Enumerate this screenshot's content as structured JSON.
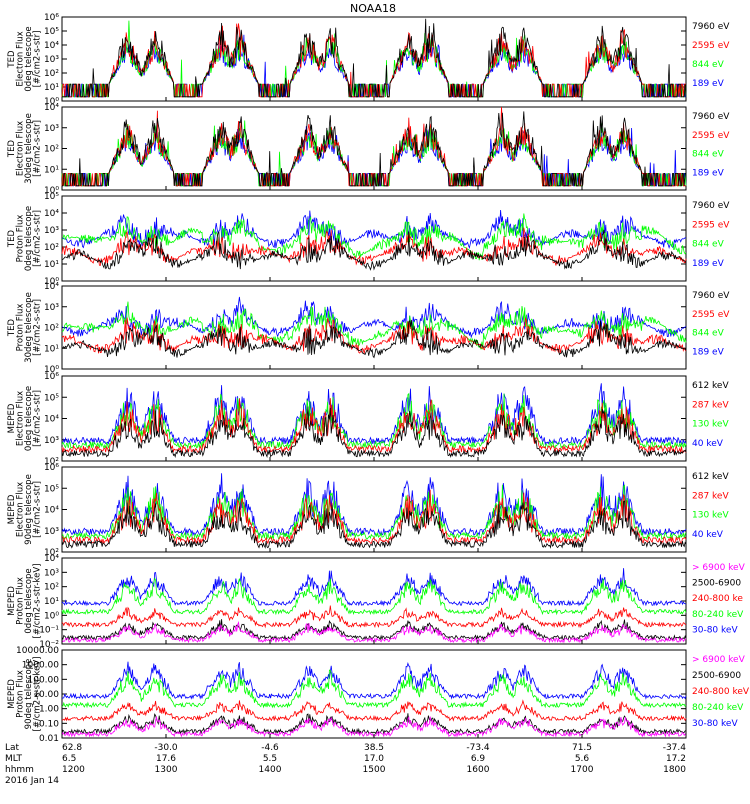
{
  "title": "NOAA18",
  "chart_data": [
    {
      "type": "line",
      "ylabel_lines": [
        "TED",
        "Electron Flux",
        "0deg telescope",
        "[#/cm2-s-str]"
      ],
      "yscale": "log",
      "ytick_labels": [
        "10⁰",
        "10¹",
        "10²",
        "10³",
        "10⁴",
        "10⁵",
        "10⁶"
      ],
      "ylim": [
        1,
        1000000
      ],
      "series": [
        {
          "name": "7960 eV",
          "color": "#000000"
        },
        {
          "name": "2595 eV",
          "color": "#ff0000"
        },
        {
          "name": "844 eV",
          "color": "#00ff00"
        },
        {
          "name": "189 eV",
          "color": "#0000ff"
        }
      ]
    },
    {
      "type": "line",
      "ylabel_lines": [
        "TED",
        "Electron Flux",
        "30deg telescope",
        "[#/cm2-s-str]"
      ],
      "yscale": "log",
      "ytick_labels": [
        "10⁰",
        "10¹",
        "10²",
        "10³",
        "10⁴"
      ],
      "ylim": [
        1,
        30000
      ],
      "series": [
        {
          "name": "7960 eV",
          "color": "#000000"
        },
        {
          "name": "2595 eV",
          "color": "#ff0000"
        },
        {
          "name": "844 eV",
          "color": "#00ff00"
        },
        {
          "name": "189 eV",
          "color": "#0000ff"
        }
      ]
    },
    {
      "type": "line",
      "ylabel_lines": [
        "TED",
        "Proton Flux",
        "0deg telescope",
        "[#/cm2-s-str]"
      ],
      "yscale": "log",
      "ytick_labels": [
        "10⁰",
        "10¹",
        "10²",
        "10³",
        "10⁴",
        "10⁵"
      ],
      "ylim": [
        1,
        100000
      ],
      "series": [
        {
          "name": "7960 eV",
          "color": "#000000"
        },
        {
          "name": "2595 eV",
          "color": "#ff0000"
        },
        {
          "name": "844 eV",
          "color": "#00ff00"
        },
        {
          "name": "189 eV",
          "color": "#0000ff"
        }
      ]
    },
    {
      "type": "line",
      "ylabel_lines": [
        "TED",
        "Proton Flux",
        "30deg telescope",
        "[#/cm2-s-str]"
      ],
      "yscale": "log",
      "ytick_labels": [
        "10⁰",
        "10¹",
        "10²",
        "10³",
        "10⁴"
      ],
      "ylim": [
        1,
        30000
      ],
      "series": [
        {
          "name": "7960 eV",
          "color": "#000000"
        },
        {
          "name": "2595 eV",
          "color": "#ff0000"
        },
        {
          "name": "844 eV",
          "color": "#00ff00"
        },
        {
          "name": "189 eV",
          "color": "#0000ff"
        }
      ]
    },
    {
      "type": "line",
      "ylabel_lines": [
        "MEPED",
        "Electron Flux",
        "0deg telescope",
        "[#/cm2-s-str]"
      ],
      "yscale": "log",
      "ytick_labels": [
        "10²",
        "10³",
        "10⁴",
        "10⁵",
        "10⁶"
      ],
      "ylim": [
        100,
        1000000
      ],
      "series": [
        {
          "name": "612 keV",
          "color": "#000000"
        },
        {
          "name": "287 keV",
          "color": "#ff0000"
        },
        {
          "name": "130 keV",
          "color": "#00ff00"
        },
        {
          "name": "40 keV",
          "color": "#0000ff"
        }
      ]
    },
    {
      "type": "line",
      "ylabel_lines": [
        "MEPED",
        "Electron Flux",
        "90deg telescope",
        "[#/cm2-s-str]"
      ],
      "yscale": "log",
      "ytick_labels": [
        "10²",
        "10³",
        "10⁴",
        "10⁵",
        "10⁶"
      ],
      "ylim": [
        100,
        1000000
      ],
      "series": [
        {
          "name": "612 keV",
          "color": "#000000"
        },
        {
          "name": "287 keV",
          "color": "#ff0000"
        },
        {
          "name": "130 keV",
          "color": "#00ff00"
        },
        {
          "name": "40 keV",
          "color": "#0000ff"
        }
      ]
    },
    {
      "type": "line",
      "ylabel_lines": [
        "MEPED",
        "Proton Flux",
        "0deg telescope",
        "[#/cm2-s-str-keV]"
      ],
      "yscale": "log",
      "ytick_labels": [
        "10⁻²",
        "10⁻¹",
        "10⁰",
        "10¹",
        "10²",
        "10³",
        "10⁴"
      ],
      "ylim": [
        0.01,
        10000
      ],
      "series": [
        {
          "name": "> 6900 keV",
          "color": "#ff00ff"
        },
        {
          "name": "2500-6900",
          "color": "#000000"
        },
        {
          "name": "240-800 ke",
          "color": "#ff0000"
        },
        {
          "name": "80-240 keV",
          "color": "#00ff00"
        },
        {
          "name": "30-80 keV",
          "color": "#0000ff"
        }
      ]
    },
    {
      "type": "line",
      "ylabel_lines": [
        "MEPED",
        "Proton Flux",
        "90deg telescope",
        "[#/cm2-s-str-keV]"
      ],
      "yscale": "log",
      "ytick_labels": [
        "0.01",
        "0.10",
        "1.00",
        "10.00",
        "100.00",
        "1000.00",
        "10000.00"
      ],
      "ylim": [
        0.01,
        10000
      ],
      "series": [
        {
          "name": "> 6900 keV",
          "color": "#ff00ff"
        },
        {
          "name": "2500-6900",
          "color": "#000000"
        },
        {
          "name": "240-800 keV",
          "color": "#ff0000"
        },
        {
          "name": "80-240 keV",
          "color": "#00ff00"
        },
        {
          "name": "30-80 keV",
          "color": "#0000ff"
        }
      ]
    }
  ],
  "xaxis": {
    "row_labels": [
      "Lat",
      "MLT",
      "hhmm",
      "2016 Jan 14"
    ],
    "ticks": [
      {
        "lat": "62.8",
        "mlt": "6.5",
        "hhmm": "1200"
      },
      {
        "lat": "-30.0",
        "mlt": "17.6",
        "hhmm": "1300"
      },
      {
        "lat": "-4.6",
        "mlt": "5.5",
        "hhmm": "1400"
      },
      {
        "lat": "38.5",
        "mlt": "17.0",
        "hhmm": "1500"
      },
      {
        "lat": "-73.4",
        "mlt": "6.9",
        "hhmm": "1600"
      },
      {
        "lat": "71.5",
        "mlt": "5.6",
        "hhmm": "1700"
      },
      {
        "lat": "-37.4",
        "mlt": "17.2",
        "hhmm": "1800"
      }
    ],
    "xlim_hhmm": [
      "1200",
      "1800"
    ]
  }
}
